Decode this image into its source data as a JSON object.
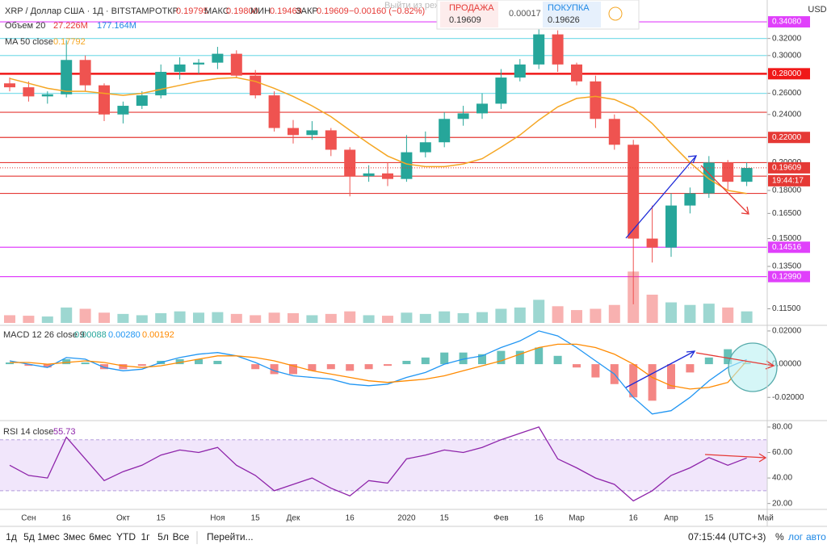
{
  "header": {
    "symbol": "XRP / Доллар США · 1Д · BITSTAMP",
    "open_label": "ОТКР",
    "open": "0.19795",
    "high_label": "МАКС",
    "high": "0.19800",
    "low_label": "МИН",
    "low": "0.19469",
    "close_label": "ЗАКР",
    "close": "0.19609",
    "change": "−0.00160 (−0.82%)",
    "currency": "USD"
  },
  "trade": {
    "hint": "Выйти из режима",
    "sell_label": "ПРОДАЖА",
    "sell": "0.19609",
    "spread": "0.00017",
    "buy_label": "ПОКУПКА",
    "buy": "0.19626"
  },
  "toolbar": {
    "ranges": [
      "1д",
      "5д",
      "1мес",
      "3мес",
      "6мес",
      "YTD",
      "1г",
      "5л",
      "Все"
    ],
    "goto": "Перейти...",
    "clock": "07:15:44 (UTC+3)",
    "options": [
      "%",
      "лог",
      "авто"
    ]
  },
  "chart_data": [
    {
      "type": "candlestick",
      "log_scale": true,
      "up_color": "#26a69a",
      "down_color": "#ef5350",
      "categories": [
        null,
        "Сен",
        null,
        "16",
        null,
        null,
        "Окт",
        null,
        "15",
        null,
        null,
        "Ноя",
        null,
        "15",
        null,
        "Дек",
        null,
        null,
        "16",
        null,
        null,
        "2020",
        null,
        "15",
        null,
        null,
        "Фев",
        null,
        "16",
        null,
        "Мар",
        null,
        null,
        "16",
        null,
        "Апр",
        null,
        "15",
        null,
        null,
        "Май"
      ],
      "open": [
        0.27,
        0.266,
        0.257,
        0.259,
        0.295,
        0.268,
        0.24,
        0.248,
        0.258,
        0.282,
        0.29,
        0.292,
        0.302,
        0.278,
        0.258,
        0.228,
        0.222,
        0.226,
        0.21,
        0.19,
        0.192,
        0.188,
        0.208,
        0.216,
        0.236,
        0.241,
        0.25,
        0.276,
        0.29,
        0.325,
        0.29,
        0.272,
        0.236,
        0.214,
        0.15,
        0.145,
        0.17,
        0.178,
        0.2,
        0.186,
        null
      ],
      "high": [
        0.276,
        0.272,
        0.262,
        0.318,
        0.3,
        0.27,
        0.252,
        0.262,
        0.29,
        0.298,
        0.296,
        0.31,
        0.306,
        0.284,
        0.262,
        0.235,
        0.234,
        0.228,
        0.212,
        0.198,
        0.2,
        0.222,
        0.225,
        0.242,
        0.248,
        0.26,
        0.285,
        0.296,
        0.344,
        0.33,
        0.292,
        0.278,
        0.24,
        0.218,
        0.17,
        0.178,
        0.182,
        0.205,
        0.202,
        0.2,
        null
      ],
      "low": [
        0.262,
        0.252,
        0.25,
        0.256,
        0.262,
        0.234,
        0.232,
        0.245,
        0.255,
        0.274,
        0.28,
        0.285,
        0.276,
        0.255,
        0.225,
        0.215,
        0.218,
        0.205,
        0.176,
        0.186,
        0.183,
        0.186,
        0.204,
        0.212,
        0.23,
        0.236,
        0.245,
        0.272,
        0.285,
        0.282,
        0.268,
        0.228,
        0.21,
        0.117,
        0.137,
        0.14,
        0.165,
        0.175,
        0.18,
        0.183,
        null
      ],
      "close": [
        0.266,
        0.257,
        0.259,
        0.295,
        0.268,
        0.24,
        0.248,
        0.258,
        0.282,
        0.29,
        0.292,
        0.302,
        0.278,
        0.258,
        0.228,
        0.222,
        0.226,
        0.21,
        0.19,
        0.192,
        0.188,
        0.208,
        0.216,
        0.236,
        0.241,
        0.25,
        0.276,
        0.29,
        0.325,
        0.29,
        0.272,
        0.236,
        0.214,
        0.15,
        0.145,
        0.17,
        0.178,
        0.2,
        0.186,
        0.196,
        null
      ],
      "ma": {
        "name": "MA 50 close",
        "last_label": "0.17792",
        "color": "#f5a623",
        "values": [
          0.275,
          0.27,
          0.265,
          0.262,
          0.262,
          0.26,
          0.258,
          0.26,
          0.264,
          0.268,
          0.272,
          0.275,
          0.276,
          0.272,
          0.265,
          0.257,
          0.248,
          0.238,
          0.226,
          0.215,
          0.205,
          0.199,
          0.197,
          0.197,
          0.199,
          0.203,
          0.212,
          0.222,
          0.235,
          0.247,
          0.255,
          0.257,
          0.254,
          0.246,
          0.232,
          0.215,
          0.2,
          0.188,
          0.18,
          0.17792,
          null
        ]
      },
      "ylim": [
        0.109,
        0.344
      ],
      "yticks": [
        {
          "value": 0.115,
          "label": "0.11500"
        },
        {
          "value": 0.135,
          "label": "0.13500"
        },
        {
          "value": 0.15,
          "label": "0.15000"
        },
        {
          "value": 0.165,
          "label": "0.16500"
        },
        {
          "value": 0.18,
          "label": "0.18000"
        },
        {
          "value": 0.2,
          "label": "0.20000"
        },
        {
          "value": 0.24,
          "label": "0.24000"
        },
        {
          "value": 0.26,
          "label": "0.26000"
        },
        {
          "value": 0.3,
          "label": "0.30000"
        },
        {
          "value": 0.32,
          "label": "0.32000"
        }
      ],
      "levels": [
        {
          "value": 0.3408,
          "label": "0.34080",
          "color": "#e040fb"
        },
        {
          "value": 0.32,
          "color": "#80deea"
        },
        {
          "value": 0.3,
          "color": "#80deea"
        },
        {
          "value": 0.28,
          "label": "0.28000",
          "color": "#f01818"
        },
        {
          "value": 0.26,
          "color": "#80deea"
        },
        {
          "value": 0.242,
          "color": "#e53935"
        },
        {
          "value": 0.22,
          "label": "0.22000",
          "color": "#e53935"
        },
        {
          "value": 0.2,
          "color": "#e53935"
        },
        {
          "value": 0.19,
          "color": "#e53935"
        },
        {
          "value": 0.178,
          "color": "#e53935"
        },
        {
          "value": 0.14516,
          "label": "0.14516",
          "color": "#e040fb"
        },
        {
          "value": 0.1299,
          "label": "0.12990",
          "color": "#e040fb"
        }
      ],
      "last_price": {
        "value": 0.19609,
        "label": "0.19609",
        "time": "19:44:17"
      }
    },
    {
      "type": "bar",
      "title": "Объем 20",
      "legend_values": [
        "27.226M",
        "177.164M"
      ],
      "ylim": [
        0,
        220
      ],
      "values": [
        30,
        28,
        25,
        60,
        55,
        40,
        35,
        30,
        38,
        45,
        40,
        42,
        35,
        30,
        40,
        38,
        30,
        35,
        45,
        30,
        28,
        40,
        35,
        45,
        38,
        42,
        55,
        60,
        90,
        65,
        50,
        55,
        70,
        200,
        110,
        80,
        70,
        75,
        60,
        45,
        null
      ]
    },
    {
      "type": "macd",
      "title": "MACD 12 26 close 9",
      "legend_values": [
        "0.00088",
        "0.00280",
        "0.00192"
      ],
      "histogram": [
        0.001,
        -0.001,
        -0.002,
        0.003,
        0.001,
        -0.003,
        -0.003,
        -0.001,
        0.002,
        0.003,
        0.003,
        0.002,
        0.0,
        -0.003,
        -0.006,
        -0.006,
        -0.004,
        -0.003,
        -0.004,
        -0.003,
        -0.001,
        0.002,
        0.004,
        0.007,
        0.007,
        0.006,
        0.008,
        0.008,
        0.01,
        0.005,
        -0.002,
        -0.008,
        -0.012,
        -0.02,
        -0.022,
        -0.015,
        -0.005,
        0.004,
        0.009,
        0.00088,
        null
      ],
      "macd": {
        "color": "#2196f3",
        "values": [
          0.002,
          0.0,
          -0.002,
          0.004,
          0.003,
          -0.002,
          -0.004,
          -0.003,
          0.001,
          0.004,
          0.006,
          0.007,
          0.005,
          0.001,
          -0.004,
          -0.007,
          -0.008,
          -0.009,
          -0.012,
          -0.013,
          -0.012,
          -0.008,
          -0.005,
          0.0,
          0.003,
          0.005,
          0.01,
          0.014,
          0.02,
          0.017,
          0.01,
          0.002,
          -0.006,
          -0.02,
          -0.03,
          -0.028,
          -0.02,
          -0.01,
          -0.002,
          0.0028,
          null
        ]
      },
      "signal": {
        "color": "#ff8a00",
        "values": [
          0.001,
          0.001,
          0.0,
          0.001,
          0.002,
          0.001,
          -0.001,
          -0.002,
          -0.001,
          0.001,
          0.003,
          0.005,
          0.005,
          0.004,
          0.002,
          -0.001,
          -0.004,
          -0.006,
          -0.008,
          -0.01,
          -0.011,
          -0.01,
          -0.009,
          -0.007,
          -0.004,
          -0.001,
          0.002,
          0.006,
          0.01,
          0.012,
          0.012,
          0.01,
          0.006,
          0.0,
          -0.008,
          -0.013,
          -0.015,
          -0.014,
          -0.011,
          0.00192,
          null
        ]
      },
      "ylim": [
        -0.0335,
        0.0224
      ],
      "yticks": [
        {
          "value": 0.02,
          "label": "0.02000"
        },
        {
          "value": 0,
          "label": "0.00000"
        },
        {
          "value": -0.02,
          "label": "-0.02000"
        }
      ]
    },
    {
      "type": "line",
      "title": "RSI 14 close",
      "legend_value": "55.73",
      "color": "#8e24aa",
      "band": [
        30,
        70
      ],
      "ylim": [
        16,
        84.4
      ],
      "values": [
        50,
        42,
        40,
        72,
        55,
        38,
        45,
        50,
        58,
        62,
        60,
        64,
        50,
        42,
        30,
        35,
        40,
        32,
        26,
        38,
        36,
        55,
        58,
        62,
        60,
        64,
        70,
        75,
        80,
        55,
        48,
        40,
        35,
        22,
        30,
        42,
        48,
        56,
        50,
        55.73,
        null
      ],
      "yticks": [
        {
          "value": 80,
          "label": "80.00"
        },
        {
          "value": 60,
          "label": "60.00"
        },
        {
          "value": 40,
          "label": "40.00"
        },
        {
          "value": 20,
          "label": "20.00"
        }
      ]
    }
  ]
}
